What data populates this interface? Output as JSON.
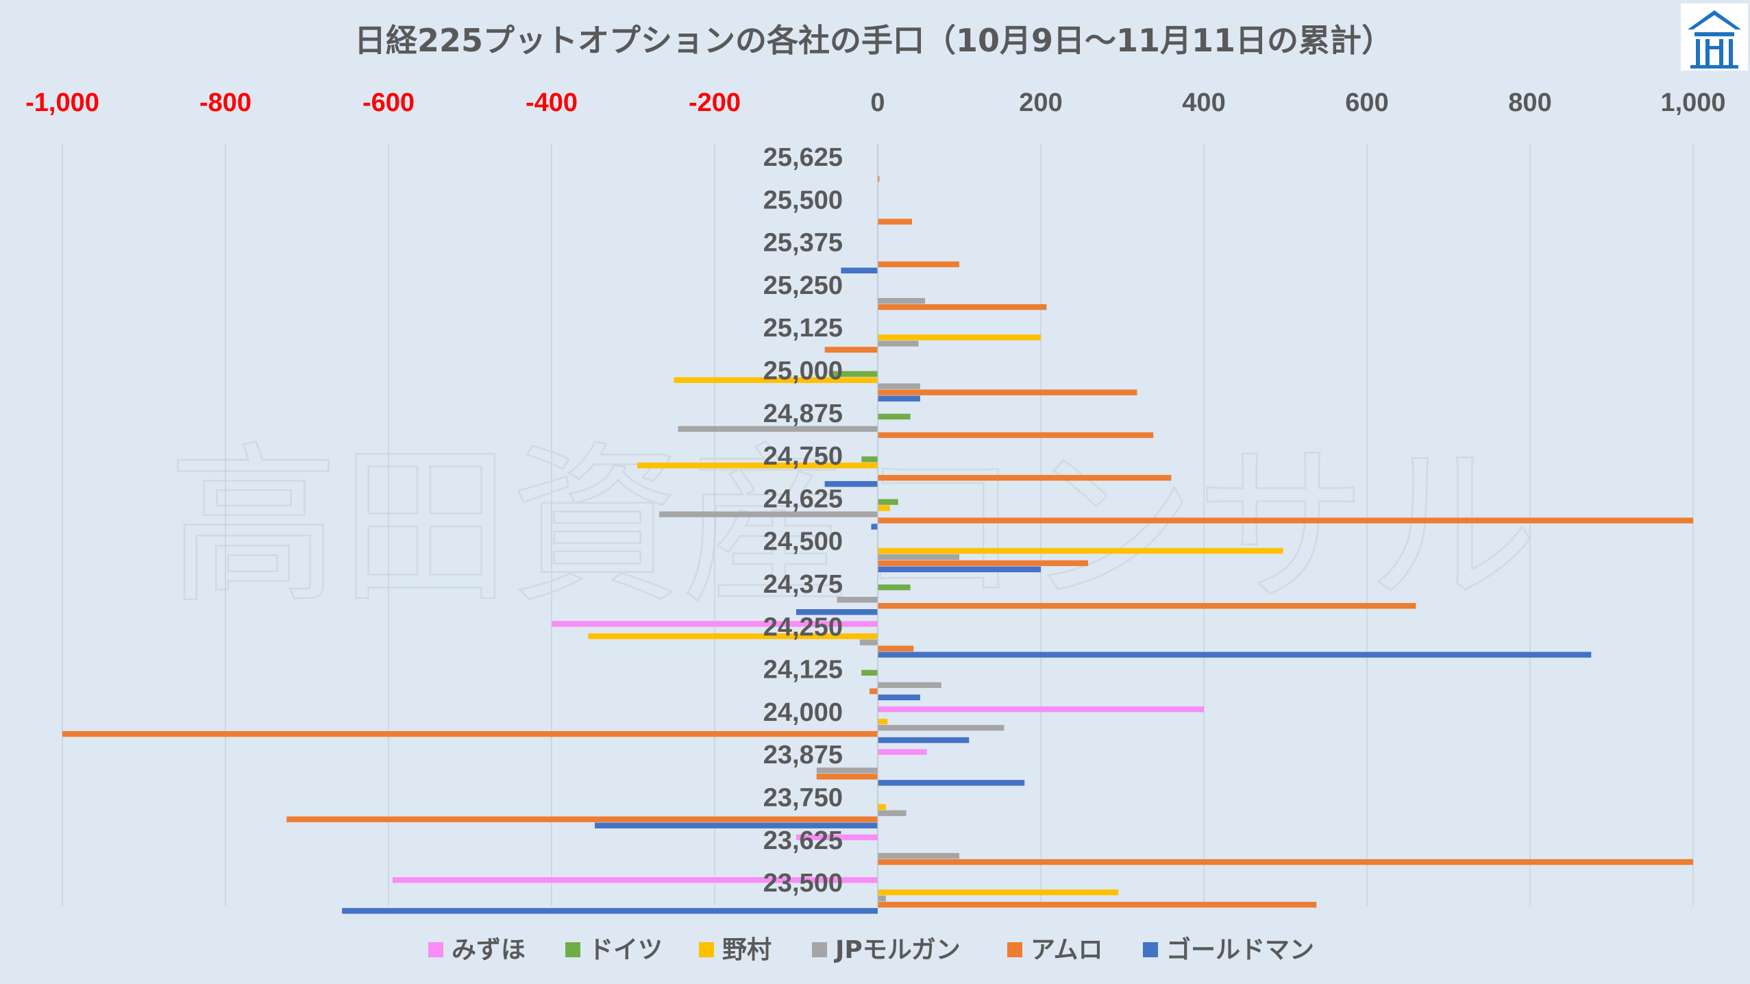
{
  "watermark": "高田資産コンサル",
  "chart_data": {
    "type": "bar",
    "orientation": "horizontal",
    "title": "日経225プットオプションの各社の手口（10月9日～11月11日の累計）",
    "xlim": [
      -1000,
      1000
    ],
    "xticks": [
      -1000,
      -800,
      -600,
      -400,
      -200,
      0,
      200,
      400,
      600,
      800,
      1000
    ],
    "xtick_labels": [
      "-1,000",
      "-800",
      "-600",
      "-400",
      "-200",
      "0",
      "200",
      "400",
      "600",
      "800",
      "1,000"
    ],
    "negative_tick_color": "#ff0000",
    "positive_tick_color": "#595959",
    "grid": true,
    "legend_position": "bottom",
    "categories": [
      "25,625",
      "25,500",
      "25,375",
      "25,250",
      "25,125",
      "25,000",
      "24,875",
      "24,750",
      "24,625",
      "24,500",
      "24,375",
      "24,250",
      "24,125",
      "24,000",
      "23,875",
      "23,750",
      "23,625",
      "23,500"
    ],
    "series": [
      {
        "name": "みずほ",
        "color": "#f98df5",
        "values": [
          0,
          0,
          0,
          0,
          0,
          0,
          0,
          0,
          0,
          0,
          0,
          -400,
          0,
          400,
          60,
          0,
          -100,
          -595
        ]
      },
      {
        "name": "ドイツ",
        "color": "#70ad47",
        "values": [
          0,
          0,
          0,
          0,
          0,
          -60,
          40,
          -20,
          25,
          0,
          40,
          0,
          -20,
          0,
          0,
          0,
          0,
          0
        ]
      },
      {
        "name": "野村",
        "color": "#ffc000",
        "values": [
          0,
          0,
          0,
          0,
          200,
          -250,
          0,
          -295,
          15,
          497,
          0,
          -355,
          0,
          12,
          0,
          10,
          0,
          295
        ]
      },
      {
        "name": "JPモルガン",
        "color": "#a5a5a5",
        "values": [
          0,
          0,
          0,
          58,
          50,
          52,
          -245,
          0,
          -268,
          100,
          -50,
          -22,
          78,
          155,
          -75,
          35,
          100,
          10
        ]
      },
      {
        "name": "アムロ",
        "color": "#ed7d31",
        "values": [
          2,
          42,
          100,
          207,
          -65,
          318,
          338,
          360,
          1000,
          258,
          660,
          44,
          -10,
          -1000,
          -75,
          -725,
          1000,
          538
        ]
      },
      {
        "name": "ゴールドマン",
        "color": "#4472c4",
        "values": [
          0,
          0,
          -45,
          0,
          0,
          52,
          0,
          -65,
          -8,
          200,
          -100,
          875,
          52,
          112,
          180,
          -347,
          0,
          -657
        ]
      }
    ]
  }
}
